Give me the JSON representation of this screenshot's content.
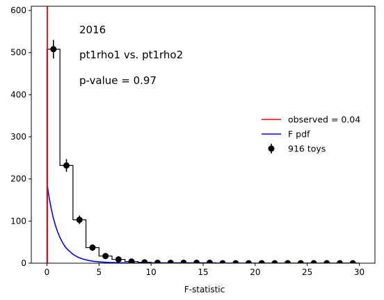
{
  "chart_data": {
    "type": "histogram",
    "title": "",
    "xlabel": "F-statistic",
    "ylabel": "",
    "xlim": [
      -1.5,
      31.5
    ],
    "ylim": [
      0,
      610
    ],
    "grid": false,
    "legend_placement": "right",
    "xticks": [
      0,
      5,
      10,
      15,
      20,
      25,
      30
    ],
    "yticks": [
      0,
      100,
      200,
      300,
      400,
      500,
      600
    ],
    "annotations": [
      "2016",
      "pt1rho1 vs. pt1rho2",
      "p-value = 0.97"
    ],
    "observed": {
      "label": "observed = 0.04",
      "value": 0.04,
      "color": "#ff0000"
    },
    "f_pdf": {
      "label": "F pdf",
      "color": "#0000ff",
      "x": [
        0.05,
        0.2,
        0.4,
        0.6,
        0.8,
        1.0,
        1.25,
        1.5,
        1.75,
        2.0,
        2.5,
        3.0,
        3.5,
        4.0,
        4.5,
        5.0,
        6.0,
        7.0,
        8.0,
        10.0,
        12.0,
        15.0,
        20.0,
        25.0,
        30.0
      ],
      "y": [
        183,
        158,
        131,
        109,
        91,
        76,
        61,
        49,
        39,
        32,
        21,
        14,
        9.5,
        6.5,
        4.5,
        3.2,
        1.7,
        1.0,
        0.6,
        0.25,
        0.1,
        0.03,
        0.0,
        0.0,
        0.0
      ]
    },
    "toys": {
      "label": "916 toys",
      "color": "#000000",
      "bin_edges": [
        0,
        1.25,
        2.5,
        3.75,
        5,
        6.25,
        7.5,
        8.75,
        10,
        11.25,
        12.5,
        13.75,
        15,
        16.25,
        17.5,
        18.75,
        20,
        21.25,
        22.5,
        23.75,
        25,
        26.25,
        27.5,
        28.75,
        30
      ],
      "counts": [
        508,
        232,
        103,
        37,
        17,
        9,
        4,
        2,
        1,
        1,
        1,
        1,
        1,
        0,
        0,
        0,
        0,
        0,
        0,
        0,
        0,
        0,
        0,
        0
      ],
      "errors": [
        22,
        15,
        10,
        6,
        4,
        3,
        2,
        1.4,
        1,
        1,
        1,
        1,
        1,
        0,
        0,
        0,
        0,
        0,
        0,
        0,
        0,
        0,
        0,
        0
      ]
    }
  }
}
